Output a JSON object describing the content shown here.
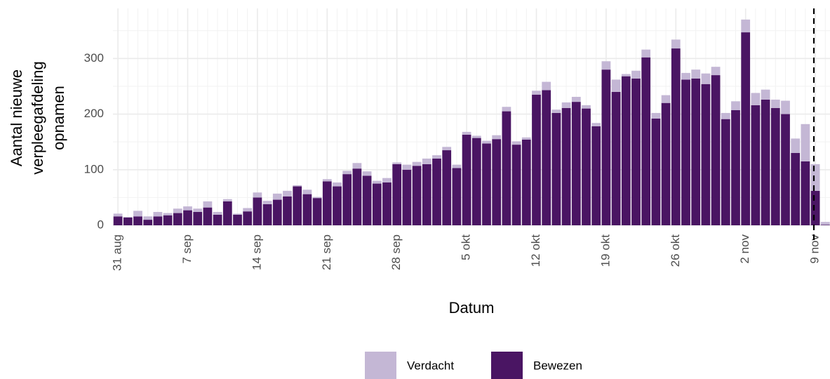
{
  "chart_data": {
    "type": "stacked_bar",
    "categories": [
      "31 aug",
      null,
      null,
      null,
      null,
      null,
      null,
      "7 sep",
      null,
      null,
      null,
      null,
      null,
      null,
      "14 sep",
      null,
      null,
      null,
      null,
      null,
      null,
      "21 sep",
      null,
      null,
      null,
      null,
      null,
      null,
      "28 sep",
      null,
      null,
      null,
      null,
      null,
      null,
      "5 okt",
      null,
      null,
      null,
      null,
      null,
      null,
      "12 okt",
      null,
      null,
      null,
      null,
      null,
      null,
      "19 okt",
      null,
      null,
      null,
      null,
      null,
      null,
      "26 okt",
      null,
      null,
      null,
      null,
      null,
      null,
      "2 nov",
      null,
      null,
      null,
      null,
      null,
      null,
      "9 nov",
      null
    ],
    "series": [
      {
        "name": "Bewezen",
        "color": "#4a1563",
        "values": [
          16,
          14,
          16,
          10,
          16,
          18,
          22,
          27,
          24,
          32,
          19,
          43,
          19,
          25,
          50,
          38,
          46,
          52,
          70,
          56,
          49,
          79,
          70,
          92,
          102,
          89,
          75,
          77,
          110,
          100,
          107,
          110,
          120,
          135,
          103,
          163,
          157,
          147,
          155,
          205,
          145,
          154,
          235,
          243,
          202,
          211,
          222,
          210,
          178,
          280,
          240,
          268,
          264,
          302,
          192,
          220,
          318,
          262,
          264,
          254,
          270,
          191,
          207,
          347,
          216,
          226,
          211,
          200,
          130,
          115,
          62,
          1
        ]
      },
      {
        "name": "Verdacht",
        "color": "#c4b7d5",
        "values": [
          5,
          1,
          10,
          6,
          8,
          4,
          8,
          7,
          6,
          11,
          5,
          4,
          2,
          6,
          9,
          6,
          11,
          10,
          2,
          8,
          2,
          4,
          7,
          6,
          10,
          8,
          5,
          8,
          3,
          9,
          7,
          10,
          6,
          6,
          6,
          5,
          4,
          5,
          7,
          8,
          6,
          4,
          7,
          15,
          6,
          10,
          9,
          6,
          6,
          15,
          22,
          4,
          14,
          14,
          10,
          14,
          16,
          12,
          16,
          19,
          15,
          11,
          16,
          23,
          22,
          18,
          15,
          24,
          26,
          67,
          48,
          5
        ]
      }
    ],
    "xlabel": "Datum",
    "ylabel": [
      "Aantal nieuwe",
      "verpleegafdeling",
      "opnamen"
    ],
    "ylim": [
      0,
      390
    ],
    "yticks": [
      0,
      100,
      200,
      300
    ],
    "grid": true,
    "legend": "bottom"
  }
}
